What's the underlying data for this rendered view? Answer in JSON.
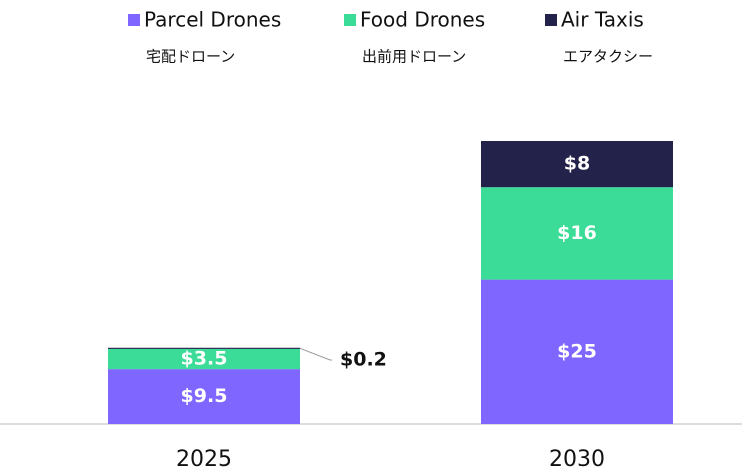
{
  "chart_data": {
    "type": "stacked_bar",
    "categories": [
      "2025",
      "2030"
    ],
    "series": [
      {
        "name": "Parcel Drones",
        "subtitle": "宅配ドローン",
        "color": "#7f66ff",
        "values": [
          9.5,
          25
        ],
        "value_labels": [
          "$9.5",
          "$25"
        ]
      },
      {
        "name": "Food Drones",
        "subtitle": "出前用ドローン",
        "color": "#3bdc97",
        "values": [
          3.5,
          16
        ],
        "value_labels": [
          "$3.5",
          "$16"
        ]
      },
      {
        "name": "Air Taxis",
        "subtitle": "エアタクシー",
        "color": "#23224a",
        "values": [
          0.2,
          8
        ],
        "value_labels": [
          "$0.2",
          "$8"
        ]
      }
    ],
    "legend": "top"
  }
}
